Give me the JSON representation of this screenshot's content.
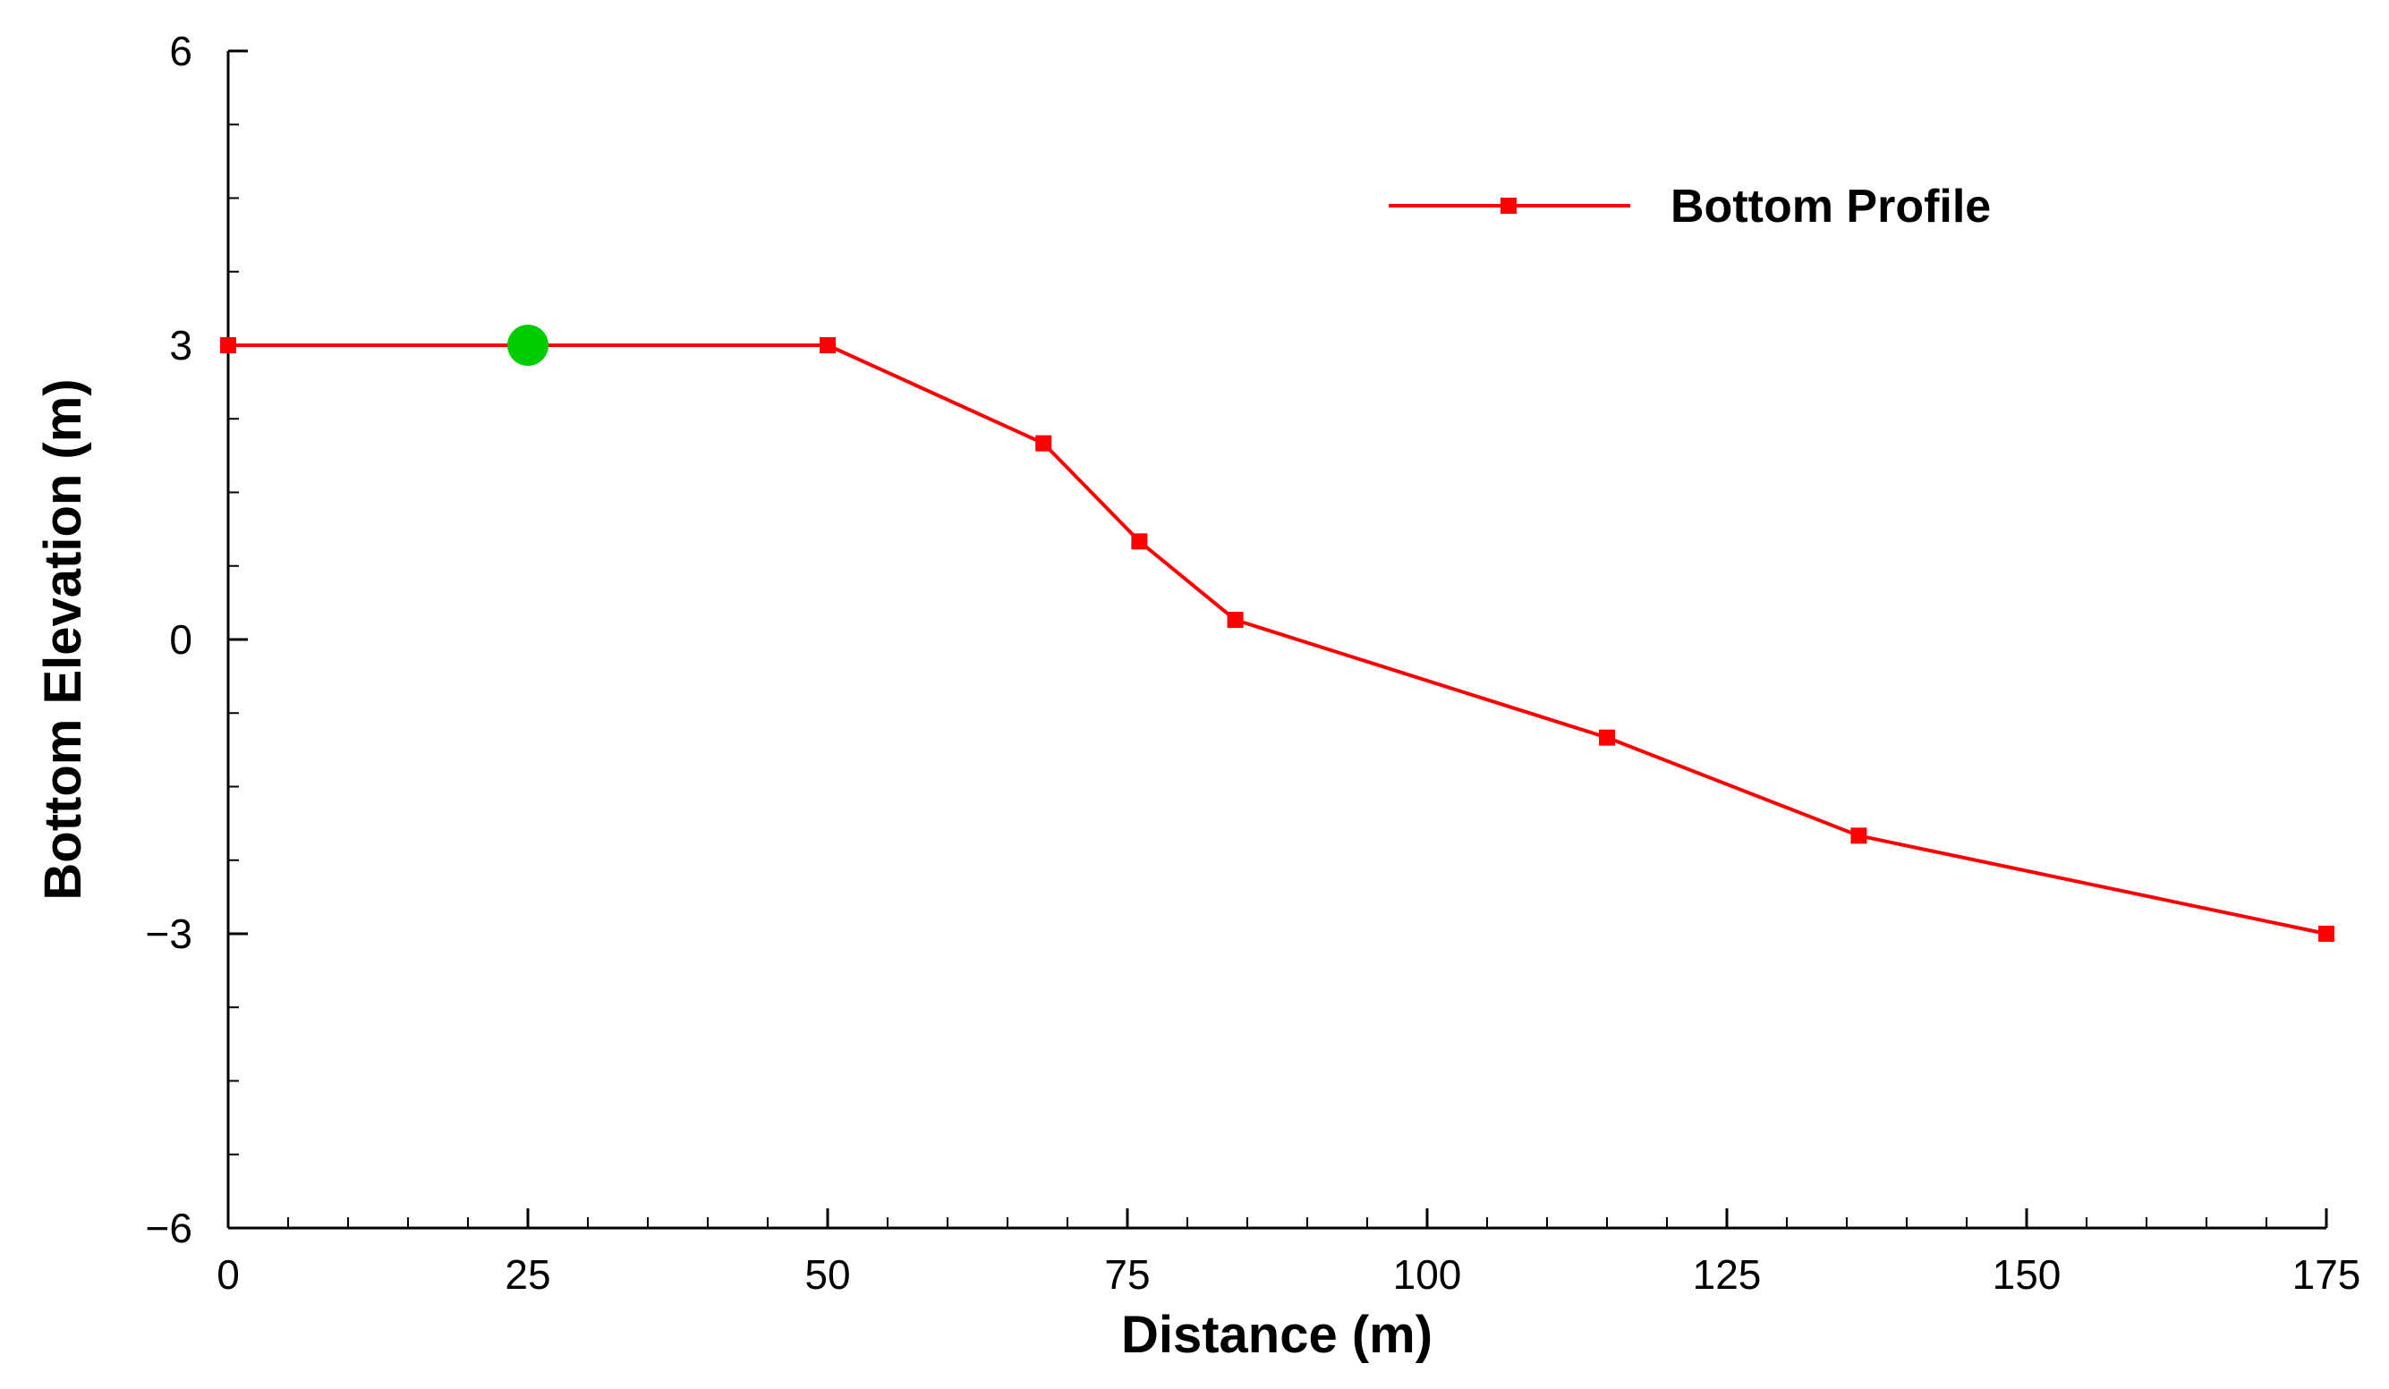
{
  "chart_data": {
    "type": "line",
    "title": "",
    "xlabel": "Distance (m)",
    "ylabel": "Bottom Elevation (m)",
    "xlim": [
      0,
      175
    ],
    "ylim": [
      -6,
      6
    ],
    "x_ticks": [
      0,
      25,
      50,
      75,
      100,
      125,
      150,
      175
    ],
    "x_tick_labels": [
      "0",
      "25",
      "50",
      "75",
      "100",
      "125",
      "150",
      "175"
    ],
    "x_minor_step": 5,
    "y_ticks": [
      -6,
      -3,
      0,
      3,
      6
    ],
    "y_tick_labels": [
      "−6",
      "−3",
      "0",
      "3",
      "6"
    ],
    "y_minor_step": 0.75,
    "grid": false,
    "legend": {
      "position": "top-right"
    },
    "series": [
      {
        "name": "Bottom Profile",
        "color": "#ff0000",
        "marker": "square",
        "x": [
          0,
          50,
          68,
          76,
          84,
          115,
          136,
          175
        ],
        "y": [
          3.0,
          3.0,
          2.0,
          1.0,
          0.2,
          -1.0,
          -2.0,
          -3.0
        ]
      }
    ],
    "annotations": [
      {
        "type": "point",
        "marker": "circle",
        "color": "#00cc00",
        "x": 25,
        "y": 3.0
      }
    ]
  }
}
